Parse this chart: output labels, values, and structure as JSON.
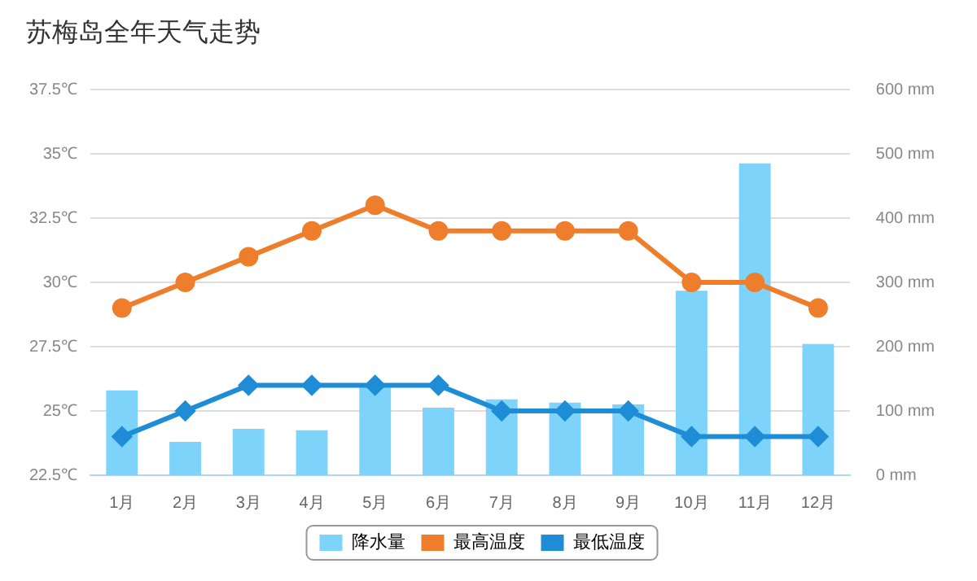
{
  "chart_data": {
    "type": "bar",
    "title": "苏梅岛全年天气走势",
    "categories": [
      "1月",
      "2月",
      "3月",
      "4月",
      "5月",
      "6月",
      "7月",
      "8月",
      "9月",
      "10月",
      "11月",
      "12月"
    ],
    "series": [
      {
        "name": "降水量",
        "axis": "y2",
        "color": "#7dd3fa",
        "values": [
          132,
          52,
          72,
          70,
          138,
          105,
          118,
          113,
          110,
          287,
          485,
          204
        ]
      },
      {
        "name": "最高温度",
        "type": "line",
        "color": "#ee7d2c",
        "marker": "circle",
        "values": [
          29,
          30,
          31,
          32,
          33,
          32,
          32,
          32,
          32,
          30,
          30,
          29
        ]
      },
      {
        "name": "最低温度",
        "type": "line",
        "color": "#1f8dd6",
        "marker": "diamond",
        "values": [
          24,
          25,
          26,
          26,
          26,
          26,
          25,
          25,
          25,
          24,
          24,
          24
        ]
      }
    ],
    "ylim": [
      22.5,
      37.5
    ],
    "yticks": [
      {
        "value": 22.5,
        "label": "22.5℃"
      },
      {
        "value": 25,
        "label": "25℃"
      },
      {
        "value": 27.5,
        "label": "27.5℃"
      },
      {
        "value": 30,
        "label": "30℃"
      },
      {
        "value": 32.5,
        "label": "32.5℃"
      },
      {
        "value": 35,
        "label": "35℃"
      },
      {
        "value": 37.5,
        "label": "37.5℃"
      }
    ],
    "y2lim": [
      0,
      600
    ],
    "y2ticks": [
      {
        "value": 0,
        "label": "0 mm"
      },
      {
        "value": 100,
        "label": "100 mm"
      },
      {
        "value": 200,
        "label": "200 mm"
      },
      {
        "value": 300,
        "label": "300 mm"
      },
      {
        "value": 400,
        "label": "400 mm"
      },
      {
        "value": 500,
        "label": "500 mm"
      },
      {
        "value": 600,
        "label": "600 mm"
      }
    ],
    "grid": "y",
    "legend": "bottom"
  }
}
